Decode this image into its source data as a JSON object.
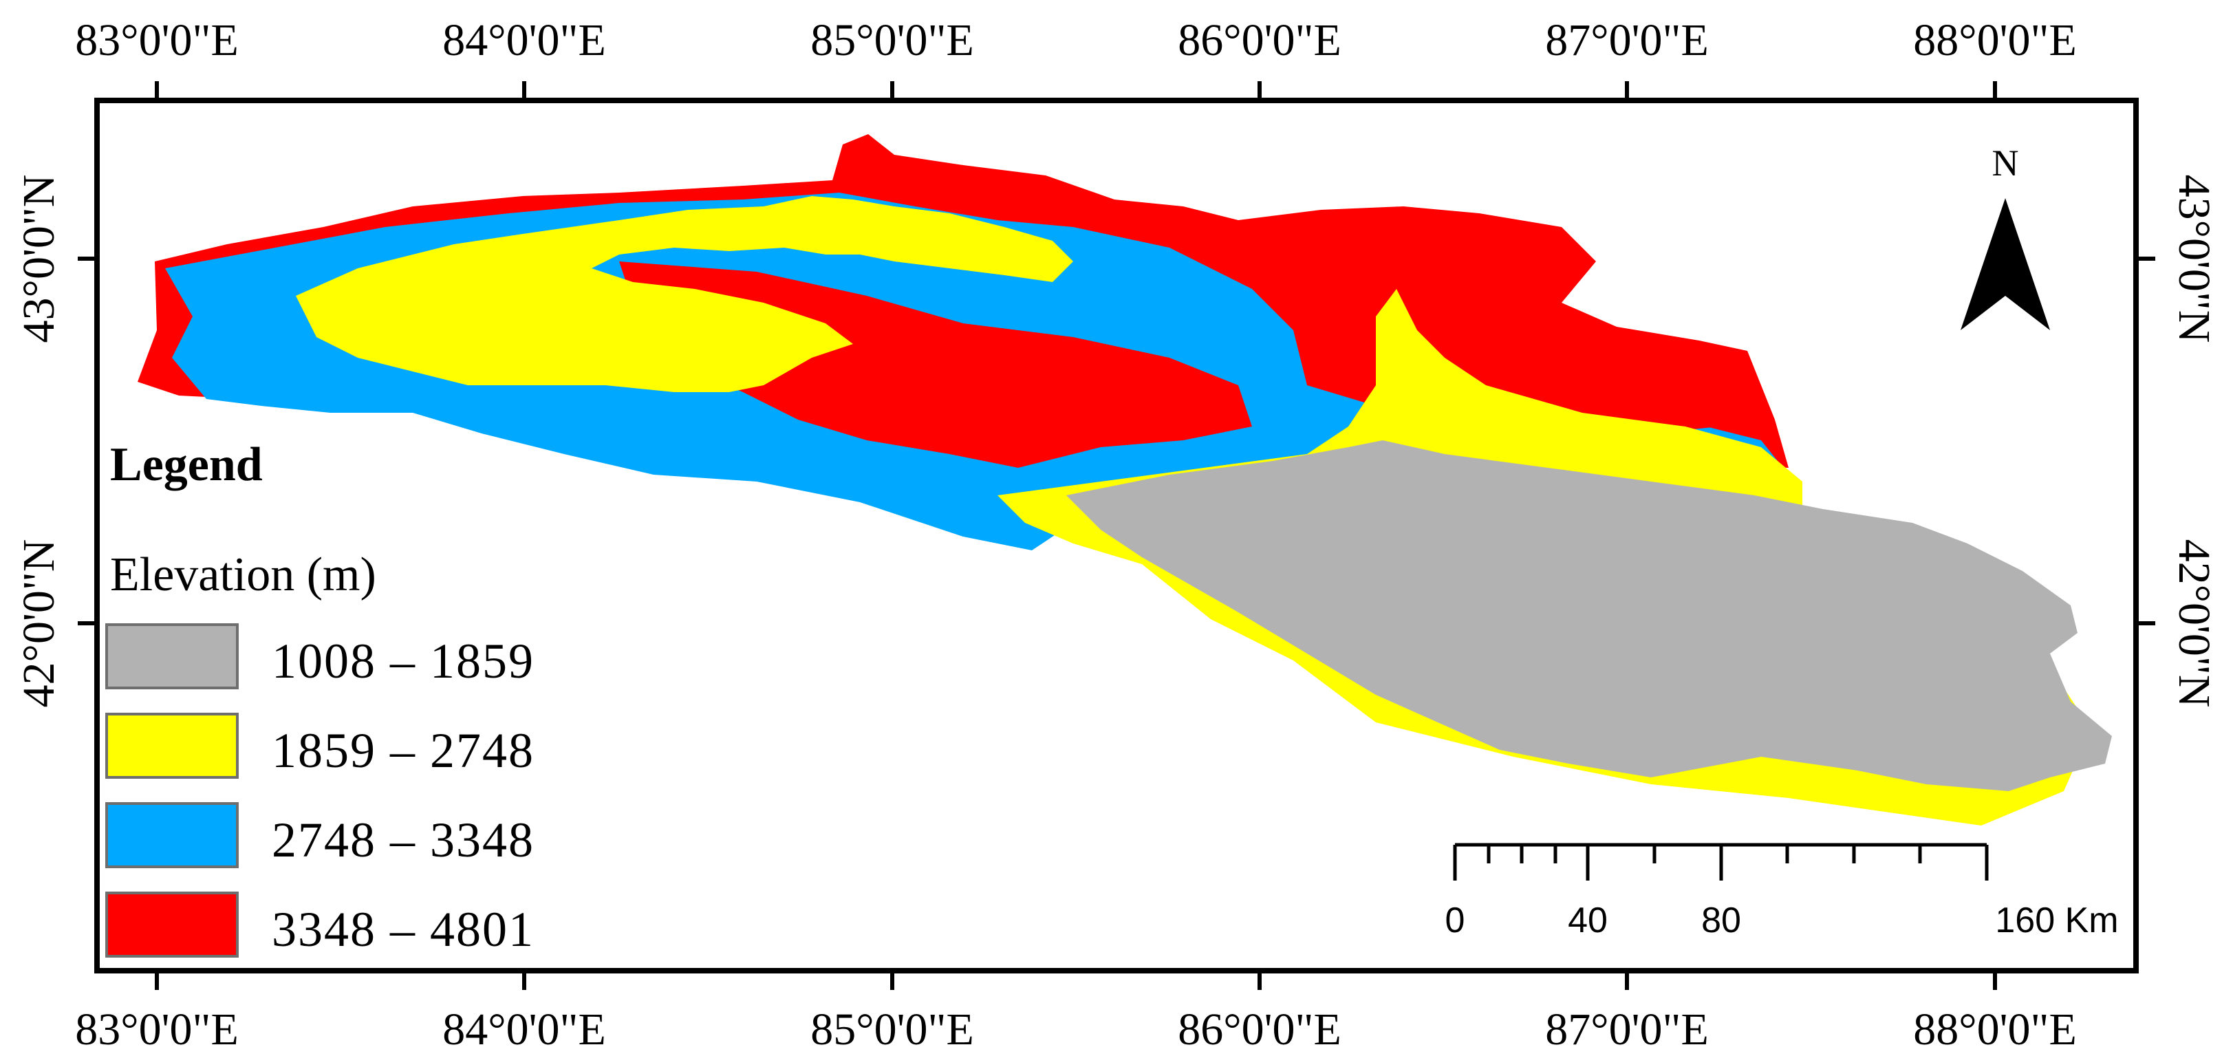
{
  "map": {
    "top_ticks": [
      "83°0'0\"E",
      "84°0'0\"E",
      "85°0'0\"E",
      "86°0'0\"E",
      "87°0'0\"E",
      "88°0'0\"E"
    ],
    "bottom_ticks": [
      "83°0'0\"E",
      "84°0'0\"E",
      "85°0'0\"E",
      "86°0'0\"E",
      "87°0'0\"E",
      "88°0'0\"E"
    ],
    "left_ticks": [
      "43°0'0\"N",
      "42°0'0\"N"
    ],
    "right_ticks": [
      "43°0'0\"N",
      "42°0'0\"N"
    ]
  },
  "legend": {
    "title": "Legend",
    "subtitle": "Elevation (m)",
    "items": [
      {
        "label": "1008 – 1859",
        "color": "#b2b2b2"
      },
      {
        "label": "1859 – 2748",
        "color": "#ffff00"
      },
      {
        "label": "2748 – 3348",
        "color": "#00a8ff"
      },
      {
        "label": "3348 – 4801",
        "color": "#ff0000"
      }
    ]
  },
  "north_arrow": {
    "label": "N",
    "icon": "north-arrow-icon"
  },
  "scale_bar": {
    "labels": [
      "0",
      "40",
      "80",
      "160 Km"
    ]
  }
}
